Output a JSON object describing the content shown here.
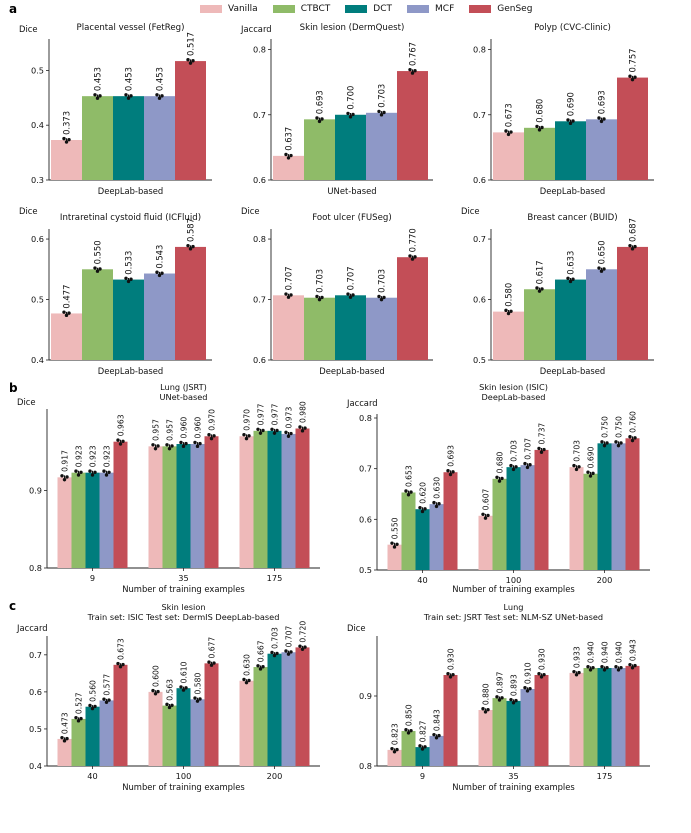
{
  "panel_labels": [
    "a",
    "b",
    "c"
  ],
  "legend": [
    {
      "name": "Vanilla",
      "color": "#eeb9b9"
    },
    {
      "name": "CTBCT",
      "color": "#8fbb68"
    },
    {
      "name": "DCT",
      "color": "#007d7d"
    },
    {
      "name": "MCF",
      "color": "#8e98c7"
    },
    {
      "name": "GenSeg",
      "color": "#c34e57"
    }
  ],
  "chart_data": [
    {
      "type": "bar",
      "title": "Placental vessel (FetReg)",
      "xlabel": "DeepLab-based",
      "ylabel": "Dice",
      "ylim": [
        0.3,
        0.55
      ],
      "yticks": [
        0.3,
        0.4,
        0.5
      ],
      "ytick_labels": [
        "0.3",
        "0.4",
        "0.5"
      ],
      "categories": [
        ""
      ],
      "series": [
        {
          "name": "Vanilla",
          "values": [
            0.373
          ]
        },
        {
          "name": "CTBCT",
          "values": [
            0.453
          ]
        },
        {
          "name": "DCT",
          "values": [
            0.453
          ]
        },
        {
          "name": "MCF",
          "values": [
            0.453
          ]
        },
        {
          "name": "GenSeg",
          "values": [
            0.517
          ]
        }
      ],
      "value_labels": [
        [
          "0.373",
          "0.453",
          "0.453",
          "0.453",
          "0.517"
        ]
      ]
    },
    {
      "type": "bar",
      "title": "Skin lesion (DermQuest)",
      "xlabel": "UNet-based",
      "ylabel": "Jaccard",
      "ylim": [
        0.6,
        0.81
      ],
      "yticks": [
        0.6,
        0.7,
        0.8
      ],
      "ytick_labels": [
        "0.6",
        "0.7",
        "0.8"
      ],
      "categories": [
        ""
      ],
      "series": [
        {
          "name": "Vanilla",
          "values": [
            0.637
          ]
        },
        {
          "name": "CTBCT",
          "values": [
            0.693
          ]
        },
        {
          "name": "DCT",
          "values": [
            0.7
          ]
        },
        {
          "name": "MCF",
          "values": [
            0.703
          ]
        },
        {
          "name": "GenSeg",
          "values": [
            0.767
          ]
        }
      ],
      "value_labels": [
        [
          "0.637",
          "0.693",
          "0.700",
          "0.703",
          "0.767"
        ]
      ]
    },
    {
      "type": "bar",
      "title": "Polyp (CVC-Clinic)",
      "xlabel": "DeepLab-based",
      "ylabel": "",
      "ylim": [
        0.6,
        0.81
      ],
      "yticks": [
        0.6,
        0.7,
        0.8
      ],
      "ytick_labels": [
        "0.6",
        "0.7",
        "0.8"
      ],
      "categories": [
        ""
      ],
      "series": [
        {
          "name": "Vanilla",
          "values": [
            0.673
          ]
        },
        {
          "name": "CTBCT",
          "values": [
            0.68
          ]
        },
        {
          "name": "DCT",
          "values": [
            0.69
          ]
        },
        {
          "name": "MCF",
          "values": [
            0.693
          ]
        },
        {
          "name": "GenSeg",
          "values": [
            0.757
          ]
        }
      ],
      "value_labels": [
        [
          "0.673",
          "0.680",
          "0.690",
          "0.693",
          "0.757"
        ]
      ]
    },
    {
      "type": "bar",
      "title": "Intraretinal cystoid fluid (ICFluid)",
      "xlabel": "DeepLab-based",
      "ylabel": "Dice",
      "ylim": [
        0.4,
        0.61
      ],
      "yticks": [
        0.4,
        0.5,
        0.6
      ],
      "ytick_labels": [
        "0.4",
        "0.5",
        "0.6"
      ],
      "categories": [
        ""
      ],
      "series": [
        {
          "name": "Vanilla",
          "values": [
            0.477
          ]
        },
        {
          "name": "CTBCT",
          "values": [
            0.55
          ]
        },
        {
          "name": "DCT",
          "values": [
            0.533
          ]
        },
        {
          "name": "MCF",
          "values": [
            0.543
          ]
        },
        {
          "name": "GenSeg",
          "values": [
            0.587
          ]
        }
      ],
      "value_labels": [
        [
          "0.477",
          "0.550",
          "0.533",
          "0.543",
          "0.587"
        ]
      ]
    },
    {
      "type": "bar",
      "title": "Foot ulcer (FUSeg)",
      "xlabel": "DeepLab-based",
      "ylabel": "Dice",
      "ylim": [
        0.6,
        0.81
      ],
      "yticks": [
        0.6,
        0.7,
        0.8
      ],
      "ytick_labels": [
        "0.6",
        "0.7",
        "0.8"
      ],
      "categories": [
        ""
      ],
      "series": [
        {
          "name": "Vanilla",
          "values": [
            0.707
          ]
        },
        {
          "name": "CTBCT",
          "values": [
            0.703
          ]
        },
        {
          "name": "DCT",
          "values": [
            0.707
          ]
        },
        {
          "name": "MCF",
          "values": [
            0.703
          ]
        },
        {
          "name": "GenSeg",
          "values": [
            0.77
          ]
        }
      ],
      "value_labels": [
        [
          "0.707",
          "0.703",
          "0.707",
          "0.703",
          "0.770"
        ]
      ]
    },
    {
      "type": "bar",
      "title": "Breast cancer (BUID)",
      "xlabel": "DeepLab-based",
      "ylabel": "Dice",
      "ylim": [
        0.5,
        0.71
      ],
      "yticks": [
        0.5,
        0.6,
        0.7
      ],
      "ytick_labels": [
        "0.5",
        "0.6",
        "0.7"
      ],
      "categories": [
        ""
      ],
      "series": [
        {
          "name": "Vanilla",
          "values": [
            0.58
          ]
        },
        {
          "name": "CTBCT",
          "values": [
            0.617
          ]
        },
        {
          "name": "DCT",
          "values": [
            0.633
          ]
        },
        {
          "name": "MCF",
          "values": [
            0.65
          ]
        },
        {
          "name": "GenSeg",
          "values": [
            0.687
          ]
        }
      ],
      "value_labels": [
        [
          "0.580",
          "0.617",
          "0.633",
          "0.650",
          "0.687"
        ]
      ]
    },
    {
      "type": "bar",
      "title": "Lung (JSRT)",
      "subtitle": "UNet-based",
      "xlabel": "Number of training examples",
      "ylabel": "Dice",
      "ylim": [
        0.8,
        1.0
      ],
      "yticks": [
        0.8,
        0.9
      ],
      "ytick_labels": [
        "0.8",
        "0.9"
      ],
      "categories": [
        "9",
        "35",
        "175"
      ],
      "series": [
        {
          "name": "Vanilla",
          "values": [
            0.917,
            0.957,
            0.97
          ]
        },
        {
          "name": "CTBCT",
          "values": [
            0.923,
            0.957,
            0.977
          ]
        },
        {
          "name": "DCT",
          "values": [
            0.923,
            0.96,
            0.977
          ]
        },
        {
          "name": "MCF",
          "values": [
            0.923,
            0.96,
            0.973
          ]
        },
        {
          "name": "GenSeg",
          "values": [
            0.963,
            0.97,
            0.98
          ]
        }
      ],
      "value_labels": [
        [
          "0.917",
          "0.923",
          "0.923",
          "0.923",
          "0.963"
        ],
        [
          "0.957",
          "0.957",
          "0.960",
          "0.960",
          "0.970"
        ],
        [
          "0.970",
          "0.977",
          "0.977",
          "0.973",
          "0.980"
        ]
      ]
    },
    {
      "type": "bar",
      "title": "Skin lesion (ISIC)",
      "subtitle": "DeepLab-based",
      "xlabel": "Number of training examples",
      "ylabel": "Jaccard",
      "ylim": [
        0.5,
        0.8
      ],
      "yticks": [
        0.5,
        0.6,
        0.7,
        0.8
      ],
      "ytick_labels": [
        "0.5",
        "0.6",
        "0.7",
        "0.8"
      ],
      "categories": [
        "40",
        "100",
        "200"
      ],
      "series": [
        {
          "name": "Vanilla",
          "values": [
            0.55,
            0.607,
            0.703
          ]
        },
        {
          "name": "CTBCT",
          "values": [
            0.653,
            0.68,
            0.69
          ]
        },
        {
          "name": "DCT",
          "values": [
            0.62,
            0.703,
            0.75
          ]
        },
        {
          "name": "MCF",
          "values": [
            0.63,
            0.707,
            0.75
          ]
        },
        {
          "name": "GenSeg",
          "values": [
            0.693,
            0.737,
            0.76
          ]
        }
      ],
      "value_labels": [
        [
          "0.550",
          "0.653",
          "0.620",
          "0.630",
          "0.693"
        ],
        [
          "0.607",
          "0.680",
          "0.703",
          "0.707",
          "0.737"
        ],
        [
          "0.703",
          "0.690",
          "0.750",
          "0.750",
          "0.760"
        ]
      ]
    },
    {
      "type": "bar",
      "title": "Skin lesion",
      "subtitle": "Train set: ISIC Test set: DermIS DeepLab-based",
      "xlabel": "Number of training examples",
      "ylabel": "Jaccard",
      "ylim": [
        0.4,
        0.74
      ],
      "yticks": [
        0.4,
        0.5,
        0.6,
        0.7
      ],
      "ytick_labels": [
        "0.4",
        "0.5",
        "0.6",
        "0.7"
      ],
      "categories": [
        "40",
        "100",
        "200"
      ],
      "series": [
        {
          "name": "Vanilla",
          "values": [
            0.473,
            0.6,
            0.63
          ]
        },
        {
          "name": "CTBCT",
          "values": [
            0.527,
            0.563,
            0.667
          ]
        },
        {
          "name": "DCT",
          "values": [
            0.56,
            0.61,
            0.703
          ]
        },
        {
          "name": "MCF",
          "values": [
            0.577,
            0.58,
            0.707
          ]
        },
        {
          "name": "GenSeg",
          "values": [
            0.673,
            0.677,
            0.72
          ]
        }
      ],
      "value_labels": [
        [
          "0.473",
          "0.527",
          "0.560",
          "0.577",
          "0.673"
        ],
        [
          "0.600",
          "0.563",
          "0.610",
          "0.580",
          "0.677"
        ],
        [
          "0.630",
          "0.667",
          "0.703",
          "0.707",
          "0.720"
        ]
      ]
    },
    {
      "type": "bar",
      "title": "Lung",
      "subtitle": "Train set: JSRT Test set: NLM-SZ UNet-based",
      "xlabel": "Number of training examples",
      "ylabel": "Dice",
      "ylim": [
        0.8,
        0.98
      ],
      "yticks": [
        0.8,
        0.9
      ],
      "ytick_labels": [
        "0.8",
        "0.9"
      ],
      "categories": [
        "9",
        "35",
        "175"
      ],
      "series": [
        {
          "name": "Vanilla",
          "values": [
            0.823,
            0.88,
            0.933
          ]
        },
        {
          "name": "CTBCT",
          "values": [
            0.85,
            0.897,
            0.94
          ]
        },
        {
          "name": "DCT",
          "values": [
            0.827,
            0.893,
            0.94
          ]
        },
        {
          "name": "MCF",
          "values": [
            0.843,
            0.91,
            0.94
          ]
        },
        {
          "name": "GenSeg",
          "values": [
            0.93,
            0.93,
            0.943
          ]
        }
      ],
      "value_labels": [
        [
          "0.823",
          "0.850",
          "0.827",
          "0.843",
          "0.930"
        ],
        [
          "0.880",
          "0.897",
          "0.893",
          "0.910",
          "0.930"
        ],
        [
          "0.933",
          "0.940",
          "0.940",
          "0.940",
          "0.943"
        ]
      ]
    }
  ]
}
